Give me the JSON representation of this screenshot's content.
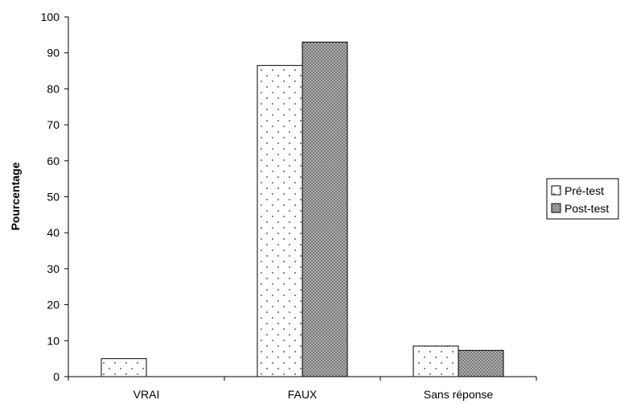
{
  "chart_data": {
    "type": "bar",
    "title": "",
    "xlabel": "",
    "ylabel": "Pourcentage",
    "categories": [
      "VRAI",
      "FAUX",
      "Sans réponse"
    ],
    "series": [
      {
        "name": "Pré-test",
        "values": [
          5,
          86.5,
          8.5
        ],
        "pattern": "dots",
        "color": "#ffffff"
      },
      {
        "name": "Post-test",
        "values": [
          0,
          93,
          7.3
        ],
        "pattern": "crosshatch",
        "color": "#b0b0b0"
      }
    ],
    "ylim": [
      0,
      100
    ],
    "yticks": [
      0,
      10,
      20,
      30,
      40,
      50,
      60,
      70,
      80,
      90,
      100
    ],
    "grid": false,
    "legend_position": "right"
  }
}
